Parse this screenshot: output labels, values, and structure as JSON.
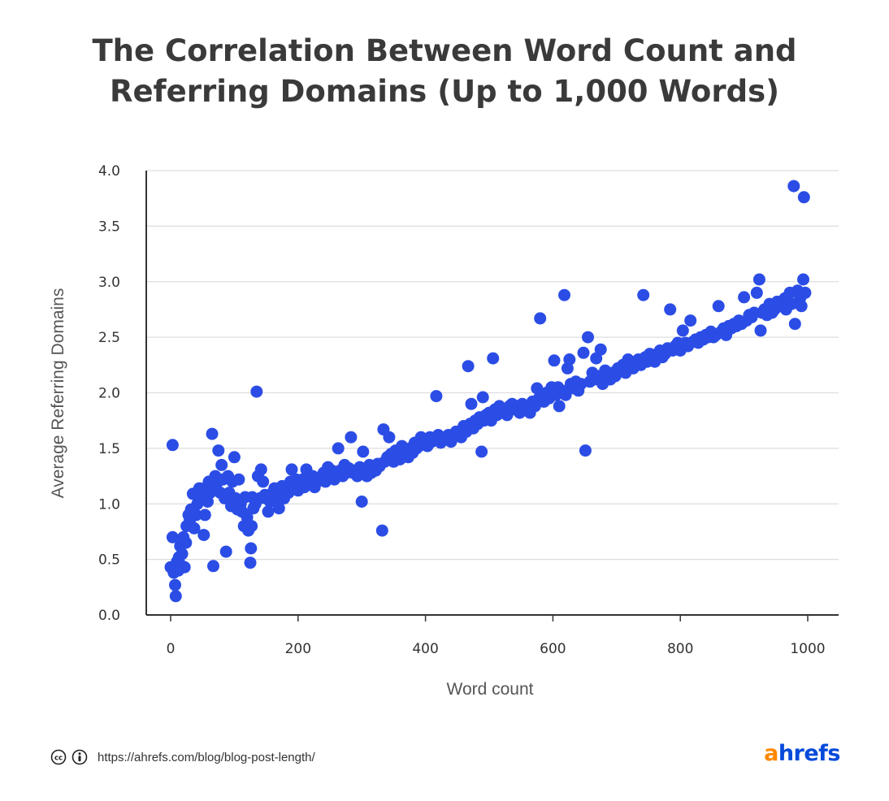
{
  "title_line1": "The Correlation Between Word Count and",
  "title_line2": "Referring Domains (Up to 1,000 Words)",
  "footer": {
    "url": "https://ahrefs.com/blog/blog-post-length/",
    "icons": [
      "creative-commons-icon",
      "attribution-icon"
    ]
  },
  "logo": {
    "first": "a",
    "rest": "hrefs"
  },
  "colors": {
    "points": "#2b4de6",
    "grid": "#dddddd",
    "axis": "#333333",
    "logo_orange": "#ff8800",
    "logo_blue": "#054ada"
  },
  "chart_data": {
    "type": "scatter",
    "title": "The Correlation Between Word Count and Referring Domains (Up to 1,000 Words)",
    "xlabel": "Word count",
    "ylabel": "Average Referring Domains",
    "xlim": [
      0,
      1000
    ],
    "ylim": [
      0,
      4
    ],
    "xticks": [
      "0",
      "200",
      "400",
      "600",
      "800",
      "1000"
    ],
    "yticks": [
      "0.0",
      "0.5",
      "1.0",
      "1.5",
      "2.0",
      "2.5",
      "3.0",
      "3.5",
      "4.0"
    ],
    "grid": "horizontal",
    "points": [
      [
        0,
        0.43
      ],
      [
        3,
        0.7
      ],
      [
        3,
        1.53
      ],
      [
        5,
        0.38
      ],
      [
        7,
        0.27
      ],
      [
        8,
        0.17
      ],
      [
        10,
        0.48
      ],
      [
        12,
        0.4
      ],
      [
        13,
        0.52
      ],
      [
        15,
        0.62
      ],
      [
        16,
        0.45
      ],
      [
        18,
        0.55
      ],
      [
        20,
        0.7
      ],
      [
        22,
        0.43
      ],
      [
        24,
        0.65
      ],
      [
        25,
        0.8
      ],
      [
        28,
        0.9
      ],
      [
        30,
        0.85
      ],
      [
        32,
        0.95
      ],
      [
        35,
        1.09
      ],
      [
        37,
        0.78
      ],
      [
        40,
        0.9
      ],
      [
        42,
        1.0
      ],
      [
        45,
        1.14
      ],
      [
        47,
        1.05
      ],
      [
        50,
        1.12
      ],
      [
        52,
        0.72
      ],
      [
        54,
        0.9
      ],
      [
        56,
        1.15
      ],
      [
        58,
        1.02
      ],
      [
        60,
        1.2
      ],
      [
        62,
        1.1
      ],
      [
        65,
        1.63
      ],
      [
        67,
        0.44
      ],
      [
        70,
        1.25
      ],
      [
        72,
        1.18
      ],
      [
        75,
        1.48
      ],
      [
        78,
        1.1
      ],
      [
        80,
        1.35
      ],
      [
        82,
        1.22
      ],
      [
        85,
        1.05
      ],
      [
        87,
        0.57
      ],
      [
        90,
        1.25
      ],
      [
        92,
        1.1
      ],
      [
        95,
        0.98
      ],
      [
        97,
        1.2
      ],
      [
        100,
        1.42
      ],
      [
        102,
        1.05
      ],
      [
        105,
        0.95
      ],
      [
        107,
        1.22
      ],
      [
        110,
        1.0
      ],
      [
        112,
        0.93
      ],
      [
        115,
        0.8
      ],
      [
        117,
        1.06
      ],
      [
        120,
        0.88
      ],
      [
        122,
        0.76
      ],
      [
        125,
        0.47
      ],
      [
        126,
        0.6
      ],
      [
        127,
        0.8
      ],
      [
        128,
        1.06
      ],
      [
        130,
        0.96
      ],
      [
        133,
        1.0
      ],
      [
        135,
        2.01
      ],
      [
        137,
        1.25
      ],
      [
        140,
        1.05
      ],
      [
        142,
        1.31
      ],
      [
        145,
        1.2
      ],
      [
        148,
        1.08
      ],
      [
        150,
        1.05
      ],
      [
        153,
        0.93
      ],
      [
        156,
        1.02
      ],
      [
        160,
        1.1
      ],
      [
        163,
        1.14
      ],
      [
        166,
        1.02
      ],
      [
        170,
        0.96
      ],
      [
        172,
        1.1
      ],
      [
        175,
        1.16
      ],
      [
        178,
        1.05
      ],
      [
        181,
        1.12
      ],
      [
        185,
        1.1
      ],
      [
        188,
        1.2
      ],
      [
        190,
        1.31
      ],
      [
        193,
        1.15
      ],
      [
        197,
        1.22
      ],
      [
        200,
        1.12
      ],
      [
        203,
        1.18
      ],
      [
        207,
        1.22
      ],
      [
        210,
        1.15
      ],
      [
        213,
        1.31
      ],
      [
        216,
        1.2
      ],
      [
        220,
        1.18
      ],
      [
        223,
        1.25
      ],
      [
        226,
        1.15
      ],
      [
        230,
        1.2
      ],
      [
        234,
        1.22
      ],
      [
        237,
        1.25
      ],
      [
        240,
        1.28
      ],
      [
        243,
        1.2
      ],
      [
        247,
        1.33
      ],
      [
        250,
        1.25
      ],
      [
        253,
        1.3
      ],
      [
        257,
        1.22
      ],
      [
        260,
        1.27
      ],
      [
        263,
        1.5
      ],
      [
        266,
        1.3
      ],
      [
        270,
        1.25
      ],
      [
        273,
        1.35
      ],
      [
        276,
        1.28
      ],
      [
        280,
        1.32
      ],
      [
        283,
        1.6
      ],
      [
        286,
        1.28
      ],
      [
        290,
        1.3
      ],
      [
        293,
        1.25
      ],
      [
        297,
        1.33
      ],
      [
        300,
        1.02
      ],
      [
        302,
        1.47
      ],
      [
        305,
        1.3
      ],
      [
        308,
        1.25
      ],
      [
        312,
        1.35
      ],
      [
        315,
        1.28
      ],
      [
        318,
        1.33
      ],
      [
        322,
        1.3
      ],
      [
        325,
        1.36
      ],
      [
        328,
        1.34
      ],
      [
        332,
        0.76
      ],
      [
        334,
        1.67
      ],
      [
        336,
        1.38
      ],
      [
        340,
        1.42
      ],
      [
        343,
        1.6
      ],
      [
        346,
        1.45
      ],
      [
        350,
        1.38
      ],
      [
        353,
        1.48
      ],
      [
        356,
        1.45
      ],
      [
        360,
        1.4
      ],
      [
        363,
        1.52
      ],
      [
        366,
        1.45
      ],
      [
        370,
        1.48
      ],
      [
        373,
        1.42
      ],
      [
        376,
        1.5
      ],
      [
        380,
        1.46
      ],
      [
        383,
        1.55
      ],
      [
        386,
        1.5
      ],
      [
        390,
        1.52
      ],
      [
        393,
        1.6
      ],
      [
        396,
        1.55
      ],
      [
        400,
        1.58
      ],
      [
        403,
        1.52
      ],
      [
        407,
        1.6
      ],
      [
        410,
        1.56
      ],
      [
        414,
        1.58
      ],
      [
        417,
        1.97
      ],
      [
        420,
        1.62
      ],
      [
        424,
        1.55
      ],
      [
        428,
        1.6
      ],
      [
        432,
        1.58
      ],
      [
        436,
        1.62
      ],
      [
        440,
        1.56
      ],
      [
        444,
        1.6
      ],
      [
        448,
        1.65
      ],
      [
        452,
        1.62
      ],
      [
        456,
        1.6
      ],
      [
        460,
        1.7
      ],
      [
        464,
        1.65
      ],
      [
        467,
        2.24
      ],
      [
        470,
        1.72
      ],
      [
        472,
        1.9
      ],
      [
        475,
        1.68
      ],
      [
        478,
        1.75
      ],
      [
        482,
        1.72
      ],
      [
        485,
        1.78
      ],
      [
        488,
        1.47
      ],
      [
        490,
        1.96
      ],
      [
        492,
        1.75
      ],
      [
        495,
        1.8
      ],
      [
        498,
        1.78
      ],
      [
        500,
        1.82
      ],
      [
        503,
        1.75
      ],
      [
        506,
        2.31
      ],
      [
        509,
        1.85
      ],
      [
        512,
        1.8
      ],
      [
        516,
        1.88
      ],
      [
        520,
        1.82
      ],
      [
        524,
        1.85
      ],
      [
        528,
        1.8
      ],
      [
        532,
        1.88
      ],
      [
        536,
        1.9
      ],
      [
        540,
        1.85
      ],
      [
        544,
        1.88
      ],
      [
        548,
        1.82
      ],
      [
        552,
        1.9
      ],
      [
        556,
        1.86
      ],
      [
        560,
        1.88
      ],
      [
        564,
        1.82
      ],
      [
        568,
        1.92
      ],
      [
        572,
        1.88
      ],
      [
        575,
        2.04
      ],
      [
        578,
        1.95
      ],
      [
        580,
        2.67
      ],
      [
        582,
        1.98
      ],
      [
        586,
        1.92
      ],
      [
        590,
        2.0
      ],
      [
        594,
        1.95
      ],
      [
        598,
        2.05
      ],
      [
        600,
        2.0
      ],
      [
        602,
        2.29
      ],
      [
        605,
        1.98
      ],
      [
        608,
        2.05
      ],
      [
        610,
        1.88
      ],
      [
        614,
        2.02
      ],
      [
        618,
        2.88
      ],
      [
        620,
        1.98
      ],
      [
        623,
        2.22
      ],
      [
        626,
        2.3
      ],
      [
        628,
        2.08
      ],
      [
        632,
        2.04
      ],
      [
        636,
        2.1
      ],
      [
        640,
        2.02
      ],
      [
        644,
        2.08
      ],
      [
        648,
        2.36
      ],
      [
        651,
        1.48
      ],
      [
        655,
        2.5
      ],
      [
        658,
        2.1
      ],
      [
        662,
        2.18
      ],
      [
        665,
        2.12
      ],
      [
        668,
        2.31
      ],
      [
        672,
        2.15
      ],
      [
        675,
        2.39
      ],
      [
        678,
        2.08
      ],
      [
        682,
        2.2
      ],
      [
        686,
        2.15
      ],
      [
        690,
        2.12
      ],
      [
        694,
        2.18
      ],
      [
        698,
        2.15
      ],
      [
        702,
        2.22
      ],
      [
        706,
        2.2
      ],
      [
        710,
        2.25
      ],
      [
        714,
        2.18
      ],
      [
        718,
        2.3
      ],
      [
        722,
        2.25
      ],
      [
        726,
        2.22
      ],
      [
        730,
        2.28
      ],
      [
        734,
        2.3
      ],
      [
        738,
        2.25
      ],
      [
        742,
        2.88
      ],
      [
        745,
        2.32
      ],
      [
        748,
        2.28
      ],
      [
        752,
        2.35
      ],
      [
        756,
        2.3
      ],
      [
        760,
        2.28
      ],
      [
        764,
        2.35
      ],
      [
        768,
        2.38
      ],
      [
        772,
        2.32
      ],
      [
        776,
        2.35
      ],
      [
        780,
        2.4
      ],
      [
        784,
        2.75
      ],
      [
        788,
        2.38
      ],
      [
        792,
        2.42
      ],
      [
        796,
        2.45
      ],
      [
        800,
        2.38
      ],
      [
        804,
        2.56
      ],
      [
        808,
        2.45
      ],
      [
        812,
        2.42
      ],
      [
        816,
        2.65
      ],
      [
        820,
        2.46
      ],
      [
        824,
        2.48
      ],
      [
        828,
        2.45
      ],
      [
        832,
        2.5
      ],
      [
        836,
        2.48
      ],
      [
        840,
        2.52
      ],
      [
        844,
        2.5
      ],
      [
        848,
        2.55
      ],
      [
        852,
        2.5
      ],
      [
        856,
        2.52
      ],
      [
        860,
        2.78
      ],
      [
        864,
        2.55
      ],
      [
        868,
        2.58
      ],
      [
        872,
        2.52
      ],
      [
        876,
        2.6
      ],
      [
        880,
        2.58
      ],
      [
        884,
        2.62
      ],
      [
        888,
        2.6
      ],
      [
        892,
        2.65
      ],
      [
        896,
        2.62
      ],
      [
        900,
        2.86
      ],
      [
        904,
        2.65
      ],
      [
        908,
        2.7
      ],
      [
        912,
        2.68
      ],
      [
        916,
        2.72
      ],
      [
        920,
        2.9
      ],
      [
        924,
        3.02
      ],
      [
        926,
        2.56
      ],
      [
        928,
        2.72
      ],
      [
        932,
        2.75
      ],
      [
        936,
        2.7
      ],
      [
        940,
        2.8
      ],
      [
        944,
        2.72
      ],
      [
        948,
        2.75
      ],
      [
        952,
        2.82
      ],
      [
        956,
        2.78
      ],
      [
        960,
        2.8
      ],
      [
        964,
        2.85
      ],
      [
        966,
        2.75
      ],
      [
        968,
        2.82
      ],
      [
        972,
        2.9
      ],
      [
        975,
        2.8
      ],
      [
        978,
        3.86
      ],
      [
        980,
        2.62
      ],
      [
        984,
        2.92
      ],
      [
        988,
        2.85
      ],
      [
        990,
        2.78
      ],
      [
        993,
        3.02
      ],
      [
        994,
        3.76
      ],
      [
        996,
        2.9
      ]
    ]
  }
}
